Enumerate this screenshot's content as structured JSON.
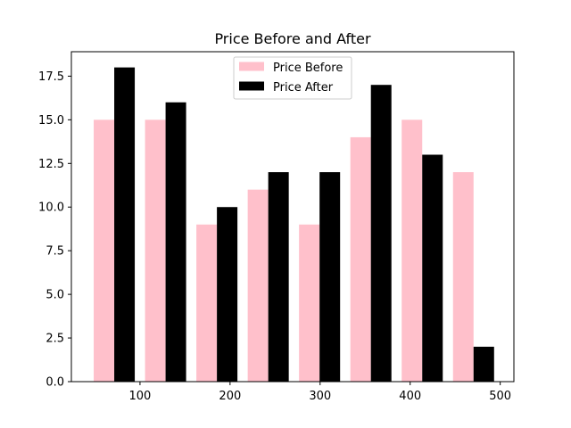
{
  "chart_data": {
    "type": "bar",
    "title": "Price Before and After",
    "xlabel": "",
    "ylabel": "",
    "x": [
      60,
      117,
      174,
      231,
      288,
      345,
      402,
      459
    ],
    "series": [
      {
        "name": "Price Before",
        "color": "#ffc0cb",
        "values": [
          15,
          15,
          9,
          11,
          9,
          14,
          15,
          12
        ]
      },
      {
        "name": "Price After",
        "color": "#000000",
        "values": [
          18,
          16,
          10,
          12,
          12,
          17,
          13,
          2
        ]
      }
    ],
    "xlim": [
      23.8,
      515.2
    ],
    "ylim": [
      0,
      18.9
    ],
    "xticks": [
      100,
      200,
      300,
      400,
      500
    ],
    "xtick_labels": [
      "100",
      "200",
      "300",
      "400",
      "500"
    ],
    "yticks": [
      0,
      2.5,
      5,
      7.5,
      10,
      12.5,
      15,
      17.5
    ],
    "ytick_labels": [
      "0.0",
      "2.5",
      "5.0",
      "7.5",
      "10.0",
      "12.5",
      "15.0",
      "17.5"
    ],
    "grid": false,
    "legend_position": "top-center"
  }
}
